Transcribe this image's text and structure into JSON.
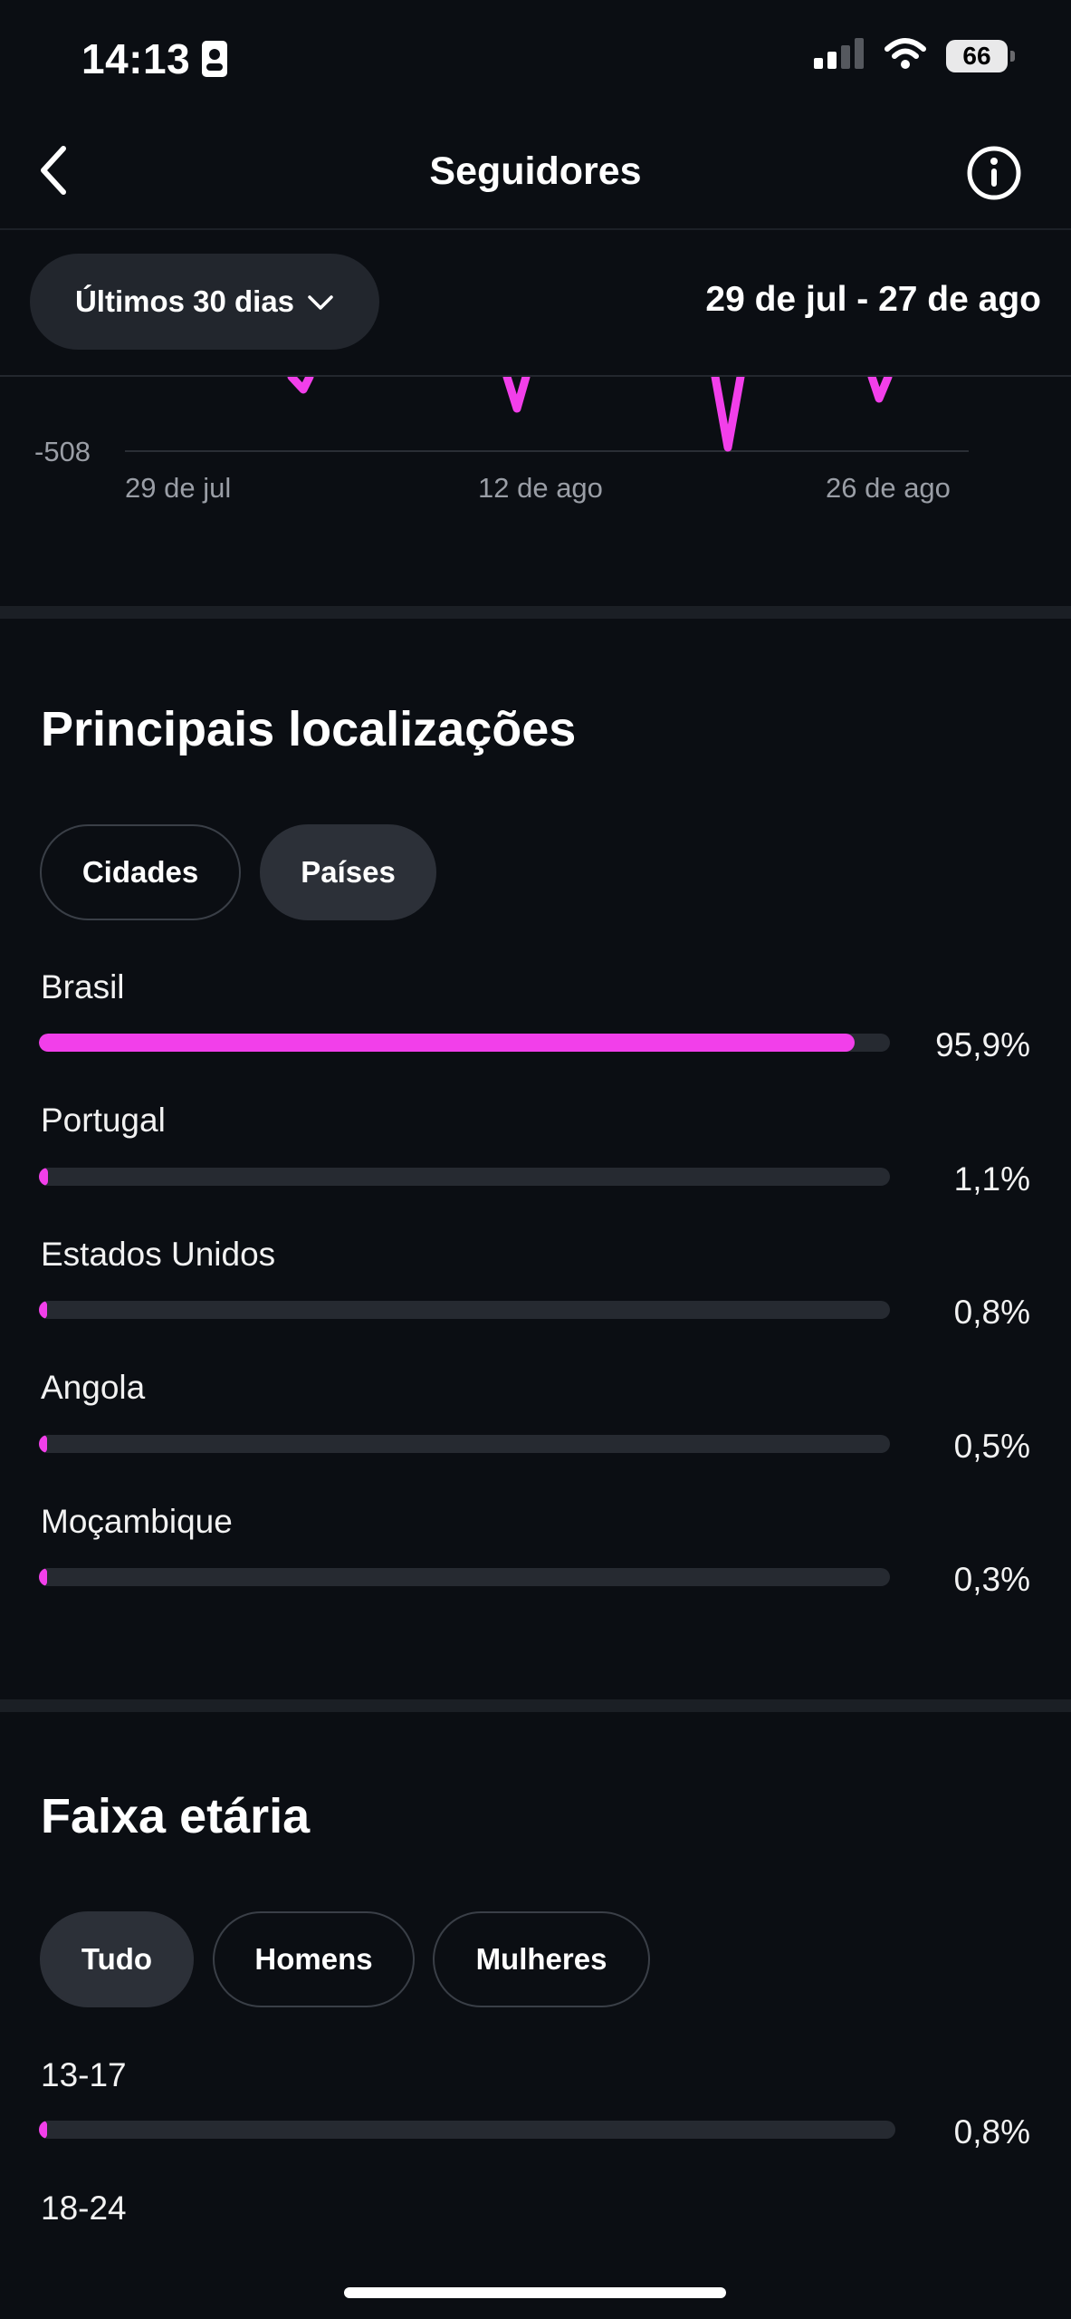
{
  "status_bar": {
    "time": "14:13",
    "battery": "66"
  },
  "header": {
    "title": "Seguidores"
  },
  "filters": {
    "range_label": "Últimos 30 dias",
    "date_range": "29 de jul - 27 de ago"
  },
  "chart_data": {
    "type": "line",
    "y_min_label": "-508",
    "x_labels": [
      "29 de jul",
      "12 de ago",
      "26 de ago"
    ],
    "color": "#f23fea"
  },
  "locations": {
    "title": "Principais localizações",
    "tabs": [
      {
        "label": "Cidades",
        "selected": false
      },
      {
        "label": "Países",
        "selected": true
      }
    ],
    "rows": [
      {
        "name": "Brasil",
        "value": "95,9%",
        "percent": 95.9
      },
      {
        "name": "Portugal",
        "value": "1,1%",
        "percent": 1.1
      },
      {
        "name": "Estados Unidos",
        "value": "0,8%",
        "percent": 0.8
      },
      {
        "name": "Angola",
        "value": "0,5%",
        "percent": 0.5
      },
      {
        "name": "Moçambique",
        "value": "0,3%",
        "percent": 0.3
      }
    ]
  },
  "age": {
    "title": "Faixa etária",
    "tabs": [
      {
        "label": "Tudo",
        "selected": true
      },
      {
        "label": "Homens",
        "selected": false
      },
      {
        "label": "Mulheres",
        "selected": false
      }
    ],
    "rows": [
      {
        "name": "13-17",
        "value": "0,8%",
        "percent": 0.8
      },
      {
        "name": "18-24"
      }
    ]
  },
  "colors": {
    "accent": "#f23fea",
    "background": "#0b0e13",
    "track": "#262a31"
  }
}
